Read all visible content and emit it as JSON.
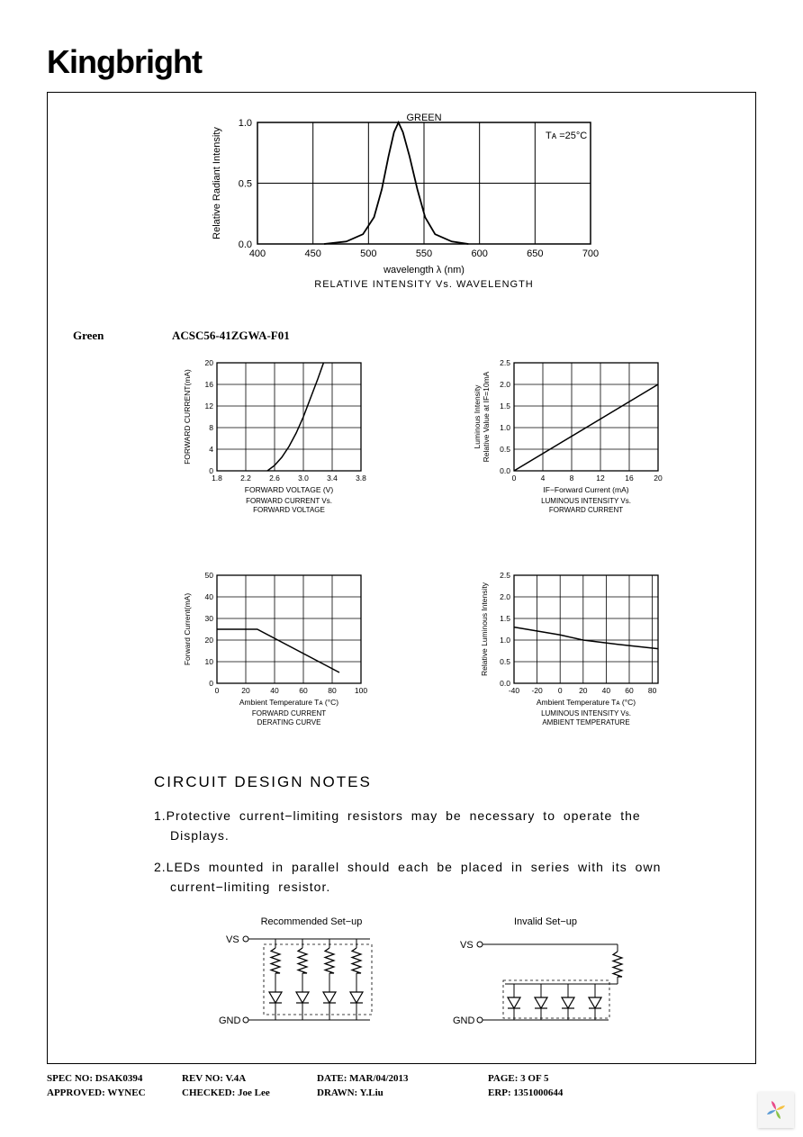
{
  "logo_text": "Kingbright",
  "top_chart": {
    "type": "line",
    "title_top": "GREEN",
    "annotation": "Tᴀ =25°C",
    "ylabel": "Relative Radiant Intensity",
    "xlabel": "wavelength λ (nm)",
    "subtitle": "RELATIVE INTENSITY Vs. WAVELENGTH",
    "xlim": [
      400,
      700
    ],
    "ylim": [
      0,
      1.0
    ],
    "xticks": [
      400,
      450,
      500,
      550,
      600,
      650,
      700
    ],
    "yticks": [
      0,
      0.5,
      1.0
    ],
    "points": [
      [
        460,
        0.0
      ],
      [
        480,
        0.02
      ],
      [
        495,
        0.08
      ],
      [
        505,
        0.22
      ],
      [
        512,
        0.45
      ],
      [
        518,
        0.72
      ],
      [
        523,
        0.92
      ],
      [
        527,
        1.0
      ],
      [
        531,
        0.92
      ],
      [
        537,
        0.72
      ],
      [
        544,
        0.45
      ],
      [
        551,
        0.22
      ],
      [
        560,
        0.08
      ],
      [
        575,
        0.02
      ],
      [
        590,
        0.0
      ]
    ],
    "line_color": "#000000",
    "grid_color": "#000000",
    "background_color": "#ffffff",
    "label_fontsize": 11
  },
  "color_label": "Green",
  "part_number": "ACSC56-41ZGWA-F01",
  "chart_a": {
    "type": "line",
    "ylabel": "FORWARD CURRENT(mA)",
    "xlabel": "FORWARD VOLTAGE (V)",
    "subtitle1": "FORWARD CURRENT Vs.",
    "subtitle2": "FORWARD VOLTAGE",
    "xlim": [
      1.8,
      3.8
    ],
    "ylim": [
      0,
      20
    ],
    "xticks": [
      1.8,
      2.2,
      2.6,
      3.0,
      3.4,
      3.8
    ],
    "yticks": [
      0,
      4,
      8,
      12,
      16,
      20
    ],
    "points": [
      [
        2.5,
        0
      ],
      [
        2.6,
        1
      ],
      [
        2.7,
        2.5
      ],
      [
        2.8,
        4.5
      ],
      [
        2.9,
        7
      ],
      [
        3.0,
        10
      ],
      [
        3.1,
        13.5
      ],
      [
        3.2,
        17
      ],
      [
        3.28,
        20
      ]
    ],
    "line_color": "#000000",
    "grid_color": "#000000"
  },
  "chart_b": {
    "type": "line",
    "ylabel1": "Luminous Intensity",
    "ylabel2": "Relative Value at IF=10mA",
    "xlabel": "IF−Forward Current (mA)",
    "subtitle1": "LUMINOUS INTENSITY Vs.",
    "subtitle2": "FORWARD CURRENT",
    "xlim": [
      0,
      20
    ],
    "ylim": [
      0,
      2.5
    ],
    "xticks": [
      0,
      4,
      8,
      12,
      16,
      20
    ],
    "yticks": [
      0,
      0.5,
      1.0,
      1.5,
      2.0,
      2.5
    ],
    "points": [
      [
        0,
        0
      ],
      [
        20,
        2.0
      ]
    ],
    "line_color": "#000000",
    "grid_color": "#000000"
  },
  "chart_c": {
    "type": "line",
    "ylabel": "Forward Current(mA)",
    "xlabel": "Ambient Temperature Tᴀ (°C)",
    "subtitle1": "FORWARD CURRENT",
    "subtitle2": "DERATING CURVE",
    "xlim": [
      0,
      100
    ],
    "ylim": [
      0,
      50
    ],
    "xticks": [
      0,
      20,
      40,
      60,
      80,
      100
    ],
    "yticks": [
      0,
      10,
      20,
      30,
      40,
      50
    ],
    "points": [
      [
        0,
        25
      ],
      [
        28,
        25
      ],
      [
        85,
        5
      ]
    ],
    "line_color": "#000000",
    "grid_color": "#000000"
  },
  "chart_d": {
    "type": "line",
    "ylabel": "Relative Luminous Intensity",
    "xlabel": "Ambient Temperature Tᴀ (°C)",
    "subtitle1": "LUMINOUS INTENSITY Vs.",
    "subtitle2": "AMBIENT TEMPERATURE",
    "xlim": [
      -40,
      85
    ],
    "ylim": [
      0,
      2.5
    ],
    "xticks": [
      -40,
      -20,
      0,
      20,
      40,
      60,
      80
    ],
    "yticks": [
      0,
      0.5,
      1.0,
      1.5,
      2.0,
      2.5
    ],
    "points": [
      [
        -40,
        1.3
      ],
      [
        0,
        1.12
      ],
      [
        20,
        1.0
      ],
      [
        50,
        0.9
      ],
      [
        85,
        0.8
      ]
    ],
    "line_color": "#000000",
    "grid_color": "#000000"
  },
  "notes": {
    "title": "CIRCUIT DESIGN NOTES",
    "item1": "1.Protective current−limiting resistors may be necessary to operate the Displays.",
    "item2": "2.LEDs mounted in parallel should each be placed in series with its own current−limiting resistor."
  },
  "setup": {
    "rec_title": "Recommended Set−up",
    "inv_title": "Invalid Set−up",
    "vs_label": "VS",
    "gnd_label": "GND"
  },
  "footer": {
    "spec_no_label": "SPEC NO:",
    "spec_no": "DSAK0394",
    "rev_no_label": "REV NO:",
    "rev_no": "V.4A",
    "date_label": "DATE:",
    "date": "MAR/04/2013",
    "page_label": "PAGE:",
    "page": "3 OF 5",
    "approved_label": "APPROVED:",
    "approved": "WYNEC",
    "checked_label": "CHECKED:",
    "checked": "Joe Lee",
    "drawn_label": "DRAWN:",
    "drawn": "Y.Liu",
    "erp_label": "ERP:",
    "erp": "1351000644"
  }
}
